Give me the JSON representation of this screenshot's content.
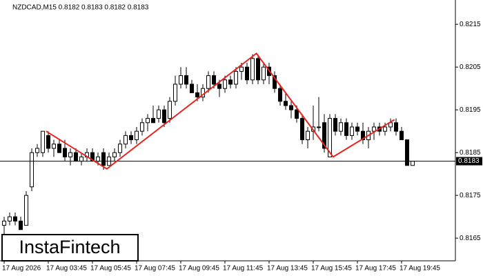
{
  "chart_data": {
    "type": "candlestick",
    "title": "NZDCAD,M15  0.8182 0.8183 0.8182 0.8183",
    "brand": "InstaFintech",
    "categories": [
      "17 Aug 2026",
      null,
      null,
      null,
      null,
      null,
      null,
      null,
      "17 Aug 03:45",
      null,
      null,
      null,
      null,
      null,
      null,
      null,
      "17 Aug 05:45",
      null,
      null,
      null,
      null,
      null,
      null,
      null,
      "17 Aug 07:45",
      null,
      null,
      null,
      null,
      null,
      null,
      null,
      "17 Aug 09:45",
      null,
      null,
      null,
      null,
      null,
      null,
      null,
      "17 Aug 11:45",
      null,
      null,
      null,
      null,
      null,
      null,
      null,
      "17 Aug 13:45",
      null,
      null,
      null,
      null,
      null,
      null,
      null,
      "17 Aug 15:45",
      null,
      null,
      null,
      null,
      null,
      null,
      null,
      "17 Aug 17:45",
      null,
      null,
      null,
      null,
      null,
      null,
      null,
      "17 Aug 19:45",
      null,
      null
    ],
    "open": [
      0.8168,
      0.8169,
      0.817,
      0.8169,
      0.8168,
      0.8177,
      0.8185,
      0.8185,
      0.8189,
      0.8186,
      0.8187,
      0.8186,
      0.8184,
      0.8185,
      0.8183,
      0.8184,
      0.8185,
      0.8183,
      0.8185,
      0.8182,
      0.8184,
      0.8185,
      0.8187,
      0.8189,
      0.8188,
      0.819,
      0.8192,
      0.8193,
      0.8193,
      0.8195,
      0.8193,
      0.8197,
      0.8201,
      0.8203,
      0.8201,
      0.8199,
      0.8198,
      0.82,
      0.8203,
      0.8201,
      0.82,
      0.8202,
      0.8201,
      0.8204,
      0.8205,
      0.8202,
      0.8207,
      0.8202,
      0.8205,
      0.8203,
      0.82,
      0.8197,
      0.8196,
      0.8195,
      0.8193,
      0.8188,
      0.819,
      0.8191,
      0.8192,
      0.8184,
      0.8193,
      0.819,
      0.8192,
      0.8189,
      0.8191,
      0.819,
      0.8188,
      0.819,
      0.8191,
      0.819,
      0.8191,
      0.8192,
      0.819,
      0.8188,
      0.8182
    ],
    "high": [
      0.817,
      0.8171,
      0.8171,
      0.817,
      0.8176,
      0.8186,
      0.8187,
      0.819,
      0.819,
      0.8188,
      0.8188,
      0.8188,
      0.8186,
      0.8186,
      0.8185,
      0.8186,
      0.8186,
      0.8185,
      0.8186,
      0.8185,
      0.8186,
      0.8188,
      0.819,
      0.819,
      0.8191,
      0.8193,
      0.8194,
      0.8196,
      0.8196,
      0.8196,
      0.8198,
      0.8203,
      0.8205,
      0.8205,
      0.8202,
      0.8201,
      0.8201,
      0.8204,
      0.8204,
      0.8202,
      0.8203,
      0.8203,
      0.8205,
      0.8206,
      0.8206,
      0.8208,
      0.8208,
      0.8206,
      0.8206,
      0.8204,
      0.8201,
      0.8199,
      0.8197,
      0.8196,
      0.8194,
      0.8191,
      0.8196,
      0.8198,
      0.8194,
      0.8194,
      0.8194,
      0.8193,
      0.8193,
      0.8192,
      0.8192,
      0.8192,
      0.8191,
      0.8192,
      0.8192,
      0.8192,
      0.8193,
      0.8193,
      0.8191,
      0.8188,
      0.8183
    ],
    "low": [
      0.8166,
      0.8168,
      0.8168,
      0.8167,
      0.8168,
      0.8176,
      0.8184,
      0.8184,
      0.8185,
      0.8184,
      0.8185,
      0.8183,
      0.8182,
      0.8183,
      0.8182,
      0.8183,
      0.8183,
      0.8182,
      0.8181,
      0.8182,
      0.8183,
      0.8184,
      0.8186,
      0.8187,
      0.8187,
      0.8189,
      0.819,
      0.8192,
      0.8192,
      0.8191,
      0.8192,
      0.8196,
      0.82,
      0.82,
      0.8199,
      0.8197,
      0.8197,
      0.8199,
      0.82,
      0.8198,
      0.8199,
      0.82,
      0.82,
      0.8202,
      0.8201,
      0.8201,
      0.8201,
      0.8201,
      0.8201,
      0.8199,
      0.8196,
      0.8195,
      0.8193,
      0.8192,
      0.8187,
      0.8186,
      0.8188,
      0.819,
      0.8185,
      0.8184,
      0.8189,
      0.8189,
      0.8188,
      0.8188,
      0.8189,
      0.8187,
      0.8186,
      0.8188,
      0.8189,
      0.8189,
      0.819,
      0.8189,
      0.8188,
      0.8182,
      0.8182
    ],
    "close": [
      0.8169,
      0.817,
      0.8169,
      0.8167,
      0.8175,
      0.8185,
      0.8186,
      0.819,
      0.8186,
      0.8187,
      0.8185,
      0.8184,
      0.8185,
      0.8183,
      0.8184,
      0.8185,
      0.8183,
      0.8184,
      0.8182,
      0.8184,
      0.8185,
      0.8187,
      0.8189,
      0.8188,
      0.819,
      0.8192,
      0.8193,
      0.8192,
      0.8195,
      0.8192,
      0.8197,
      0.8201,
      0.8203,
      0.8201,
      0.8199,
      0.8198,
      0.82,
      0.8203,
      0.8201,
      0.82,
      0.8202,
      0.8201,
      0.8204,
      0.8205,
      0.8202,
      0.8207,
      0.8202,
      0.8205,
      0.8203,
      0.82,
      0.8197,
      0.8196,
      0.8195,
      0.8193,
      0.8188,
      0.819,
      0.8191,
      0.8191,
      0.8186,
      0.8193,
      0.819,
      0.8192,
      0.8189,
      0.8191,
      0.819,
      0.8188,
      0.819,
      0.8191,
      0.819,
      0.8191,
      0.8192,
      0.819,
      0.8188,
      0.8182,
      0.8183
    ],
    "ylim": [
      0.81597,
      0.82202
    ],
    "yticks": [
      0.8165,
      0.8175,
      0.8185,
      0.8195,
      0.8205,
      0.8215
    ],
    "last_price": 0.8183,
    "pattern": {
      "color": "#e8231c",
      "x": [
        7.6,
        18.6,
        45.7,
        59.6,
        70.7
      ],
      "y": [
        0.819,
        0.81812,
        0.82082,
        0.8184,
        0.81927
      ]
    }
  }
}
